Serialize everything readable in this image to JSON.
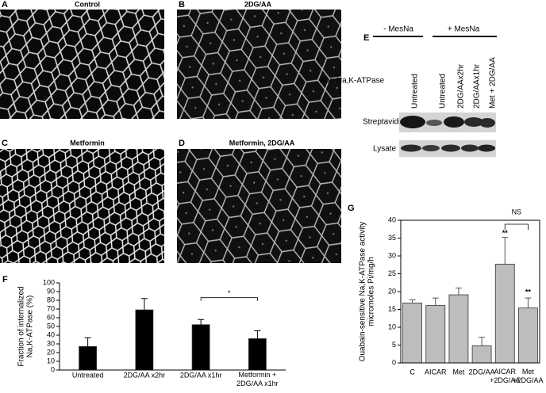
{
  "panels": [
    {
      "label": "A",
      "title": "Control"
    },
    {
      "label": "B",
      "title": "2DG/AA"
    },
    {
      "label": "C",
      "title": "Metformin"
    },
    {
      "label": "D",
      "title": "Metformin, 2DG/AA"
    }
  ],
  "blot": {
    "label": "E",
    "groups": [
      "- MesNa",
      "+ MesNa"
    ],
    "lanes": [
      "Untreated",
      "Untreated",
      "2DG/AAx2hr",
      "2DG/AAx1hr",
      "Met + 2DG/AA"
    ],
    "antibody": "Ab= Na,K-ATPase",
    "rows": [
      "Streptavidin",
      "Lysate"
    ]
  },
  "chart_data": [
    {
      "type": "bar",
      "label": "F",
      "ylabel": "Fraction of internalized\nNa,K-ATPase (%)",
      "categories": [
        "Untreated",
        "2DG/AA x2hr",
        "2DG/AA x1hr",
        "Metformin +\n2DG/AA x1hr"
      ],
      "values": [
        27,
        69,
        52,
        36
      ],
      "errors": [
        10,
        13,
        6,
        9
      ],
      "color": "#000000",
      "ylim": [
        0,
        100
      ],
      "yticks": [
        0,
        10,
        20,
        30,
        40,
        50,
        60,
        70,
        80,
        90,
        100
      ],
      "frame": false,
      "annotations": [
        "*"
      ]
    },
    {
      "type": "bar",
      "label": "G",
      "ylabel": "Ouabain-sensitive Na,K-ATPase activity\nmicromoles Pi/mg/h",
      "categories": [
        "C",
        "AICAR",
        "Met",
        "2DG/AA",
        "AICAR\n+2DG/AA",
        "Met\n+2DG/AA"
      ],
      "values": [
        16.8,
        16.1,
        19.1,
        4.8,
        27.7,
        15.4
      ],
      "errors": [
        0.9,
        2.1,
        1.9,
        2.4,
        7.5,
        2.8
      ],
      "color": "#bdbdbd",
      "ylim": [
        0,
        40
      ],
      "yticks": [
        0,
        5,
        10,
        15,
        20,
        25,
        30,
        35,
        40
      ],
      "frame": true,
      "annotations": [
        "**",
        "**",
        "NS"
      ]
    }
  ]
}
